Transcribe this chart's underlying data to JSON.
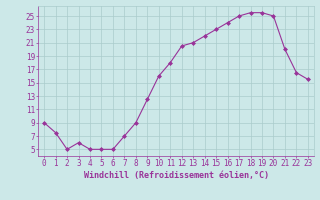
{
  "x": [
    0,
    1,
    2,
    3,
    4,
    5,
    6,
    7,
    8,
    9,
    10,
    11,
    12,
    13,
    14,
    15,
    16,
    17,
    18,
    19,
    20,
    21,
    22,
    23
  ],
  "y": [
    9,
    7.5,
    5,
    6,
    5,
    5,
    5,
    7,
    9,
    12.5,
    16,
    18,
    20.5,
    21,
    22,
    23,
    24,
    25,
    25.5,
    25.5,
    25,
    20,
    16.5,
    15.5
  ],
  "line_color": "#993399",
  "marker": "D",
  "marker_size": 2,
  "bg_color": "#cce8e8",
  "grid_color": "#aacccc",
  "xlabel": "Windchill (Refroidissement éolien,°C)",
  "xlabel_color": "#993399",
  "ylabel_ticks": [
    5,
    7,
    9,
    11,
    13,
    15,
    17,
    19,
    21,
    23,
    25
  ],
  "xlim": [
    -0.5,
    23.5
  ],
  "ylim": [
    4,
    26.5
  ],
  "tick_color": "#993399",
  "tick_label_color": "#993399",
  "font_size": 5.5
}
